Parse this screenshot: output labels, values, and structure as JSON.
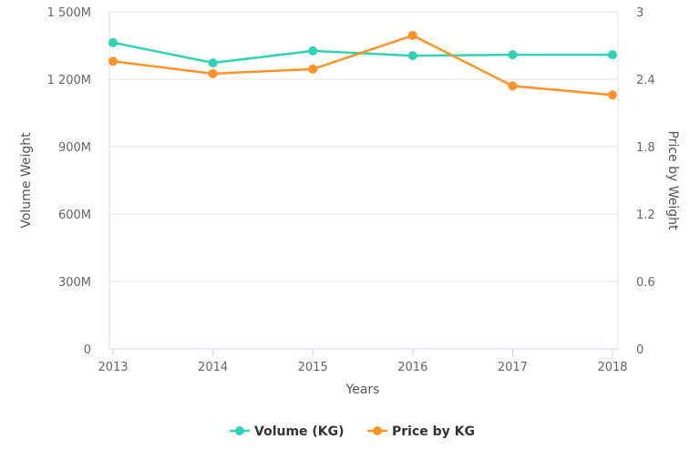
{
  "chart_data": {
    "type": "line",
    "x": [
      "2013",
      "2014",
      "2015",
      "2016",
      "2017",
      "2018"
    ],
    "xlabel": "Years",
    "ylabel": "Volume Weight",
    "ylabel_right": "Price by Weight",
    "ylim": [
      0,
      1500000000
    ],
    "ylim_right": [
      0,
      3
    ],
    "yticks": [
      "0",
      "300M",
      "600M",
      "900M",
      "1 200M",
      "1 500M"
    ],
    "yticks_right": [
      "0",
      "0.6",
      "1.2",
      "1.8",
      "2.4",
      "3"
    ],
    "grid": true,
    "legend": "bottom",
    "series": [
      {
        "name": "Volume (KG)",
        "axis": "left",
        "color": "#2fd3b0",
        "values": [
          1363000000,
          1273000000,
          1326000000,
          1305000000,
          1309000000,
          1309000000
        ]
      },
      {
        "name": "Price by KG",
        "axis": "right",
        "color": "#ff9326",
        "values": [
          2.56,
          2.45,
          2.49,
          2.79,
          2.34,
          2.26
        ]
      }
    ]
  }
}
